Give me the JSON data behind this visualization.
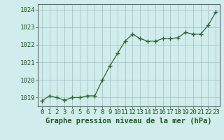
{
  "x": [
    0,
    1,
    2,
    3,
    4,
    5,
    6,
    7,
    8,
    9,
    10,
    11,
    12,
    13,
    14,
    15,
    16,
    17,
    18,
    19,
    20,
    21,
    22,
    23
  ],
  "y": [
    1018.8,
    1019.1,
    1019.0,
    1018.85,
    1019.0,
    1019.0,
    1019.1,
    1019.1,
    1020.0,
    1020.8,
    1021.5,
    1022.2,
    1022.6,
    1022.35,
    1022.2,
    1022.2,
    1022.35,
    1022.35,
    1022.4,
    1022.7,
    1022.6,
    1022.6,
    1023.1,
    1023.85
  ],
  "line_color": "#2d6a2d",
  "marker_color": "#2d6a2d",
  "bg_color": "#d0ecec",
  "grid_color": "#9dbfbf",
  "xlabel": "Graphe pression niveau de la mer (hPa)",
  "xlabel_color": "#1a5c1a",
  "xlabel_fontsize": 7.5,
  "tick_color": "#1a5c1a",
  "tick_fontsize": 6.5,
  "ylim": [
    1018.5,
    1024.3
  ],
  "yticks": [
    1019,
    1020,
    1021,
    1022,
    1023,
    1024
  ],
  "xlim": [
    -0.5,
    23.5
  ],
  "xticks": [
    0,
    1,
    2,
    3,
    4,
    5,
    6,
    7,
    8,
    9,
    10,
    11,
    12,
    13,
    14,
    15,
    16,
    17,
    18,
    19,
    20,
    21,
    22,
    23
  ],
  "axis_color": "#888888",
  "spine_color": "#666666"
}
